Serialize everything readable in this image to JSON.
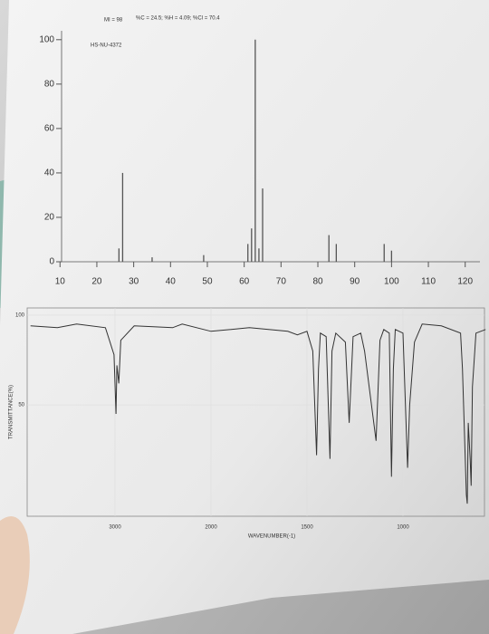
{
  "chart_data": [
    {
      "type": "bar",
      "title": "MI = 98",
      "subtitle": "%C = 24.5; %H = 4.09; %Cl = 70.4",
      "annotation": "HS-NU-4372",
      "x": [
        26,
        27,
        35,
        49,
        61,
        62,
        63,
        64,
        65,
        83,
        85,
        98,
        100
      ],
      "values": [
        6,
        40,
        2,
        3,
        8,
        15,
        100,
        6,
        33,
        12,
        8,
        8,
        5
      ],
      "color": "#555555",
      "xlim": [
        6,
        124
      ],
      "xticks": [
        10,
        20,
        30,
        40,
        50,
        60,
        70,
        80,
        90,
        100,
        110,
        120
      ],
      "ylim": [
        0,
        104
      ],
      "yticks": [
        0,
        20,
        40,
        60,
        80,
        100
      ]
    },
    {
      "type": "line",
      "xlabel": "WAVENUMBER(-1)",
      "ylabel": "TRANSMITTANCE(%)",
      "x": [
        3880,
        3600,
        3400,
        3100,
        3010,
        2990,
        2980,
        2960,
        2940,
        2800,
        2400,
        2300,
        2000,
        1800,
        1600,
        1550,
        1500,
        1470,
        1450,
        1440,
        1430,
        1400,
        1380,
        1370,
        1350,
        1300,
        1280,
        1260,
        1220,
        1200,
        1140,
        1120,
        1100,
        1071,
        1060,
        1050,
        1040,
        1000,
        976,
        965,
        940,
        900,
        800,
        700,
        690,
        670,
        665,
        660,
        650,
        645,
        638,
        620,
        570
      ],
      "values": [
        94,
        93,
        95,
        93,
        78,
        45,
        72,
        62,
        86,
        94,
        93,
        95,
        91,
        93,
        91,
        89,
        91,
        80,
        22,
        70,
        90,
        88,
        20,
        80,
        90,
        85,
        40,
        88,
        90,
        80,
        30,
        86,
        92,
        90,
        10,
        70,
        92,
        90,
        15,
        50,
        85,
        95,
        94,
        90,
        70,
        0,
        -5,
        40,
        20,
        5,
        60,
        90,
        92
      ],
      "color": "#333333",
      "xlim": [
        3880,
        570
      ],
      "xticks": [
        3000,
        2000,
        1500,
        1000
      ],
      "ylim": [
        -12,
        104
      ],
      "yticks": [
        50,
        100
      ],
      "grid": true
    }
  ]
}
